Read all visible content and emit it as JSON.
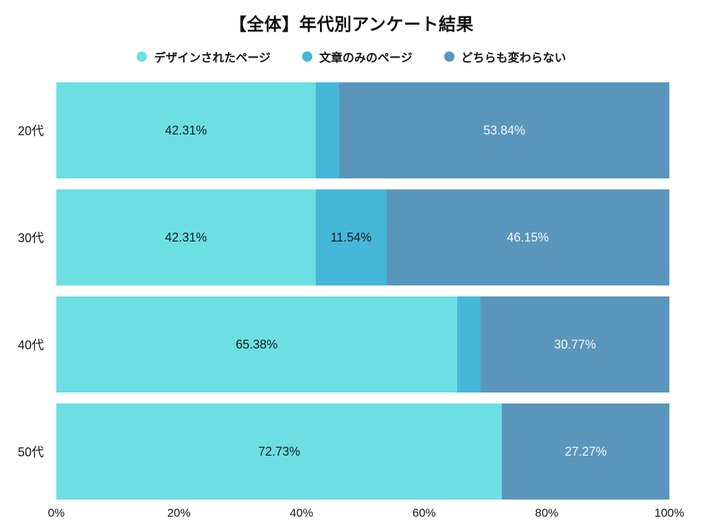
{
  "chart_data": {
    "type": "bar",
    "orientation": "horizontal-stacked",
    "title": "【全体】年代別アンケート結果",
    "categories": [
      "20代",
      "30代",
      "40代",
      "50代"
    ],
    "series": [
      {
        "name": "デザインされたページ",
        "color": "#6CDFE3",
        "label_color": "#1b1b1b",
        "values": [
          42.31,
          42.31,
          65.38,
          72.73
        ]
      },
      {
        "name": "文章のみのページ",
        "color": "#45B7D8",
        "label_color": "#1b1b1b",
        "values": [
          3.85,
          11.54,
          3.85,
          0
        ]
      },
      {
        "name": "どちらも変わらない",
        "color": "#5A96BC",
        "label_color": "#f7f7f7",
        "values": [
          53.84,
          46.15,
          30.77,
          27.27
        ]
      }
    ],
    "value_labels": [
      [
        "42.31%",
        "",
        "53.84%"
      ],
      [
        "42.31%",
        "11.54%",
        "46.15%"
      ],
      [
        "65.38%",
        "",
        "30.77%"
      ],
      [
        "72.73%",
        "",
        "27.27%"
      ]
    ],
    "x_ticks": [
      "0%",
      "20%",
      "40%",
      "60%",
      "80%",
      "100%"
    ],
    "xlim": [
      0,
      100
    ],
    "grid": false,
    "legend_position": "top",
    "background": "#ffffff"
  }
}
